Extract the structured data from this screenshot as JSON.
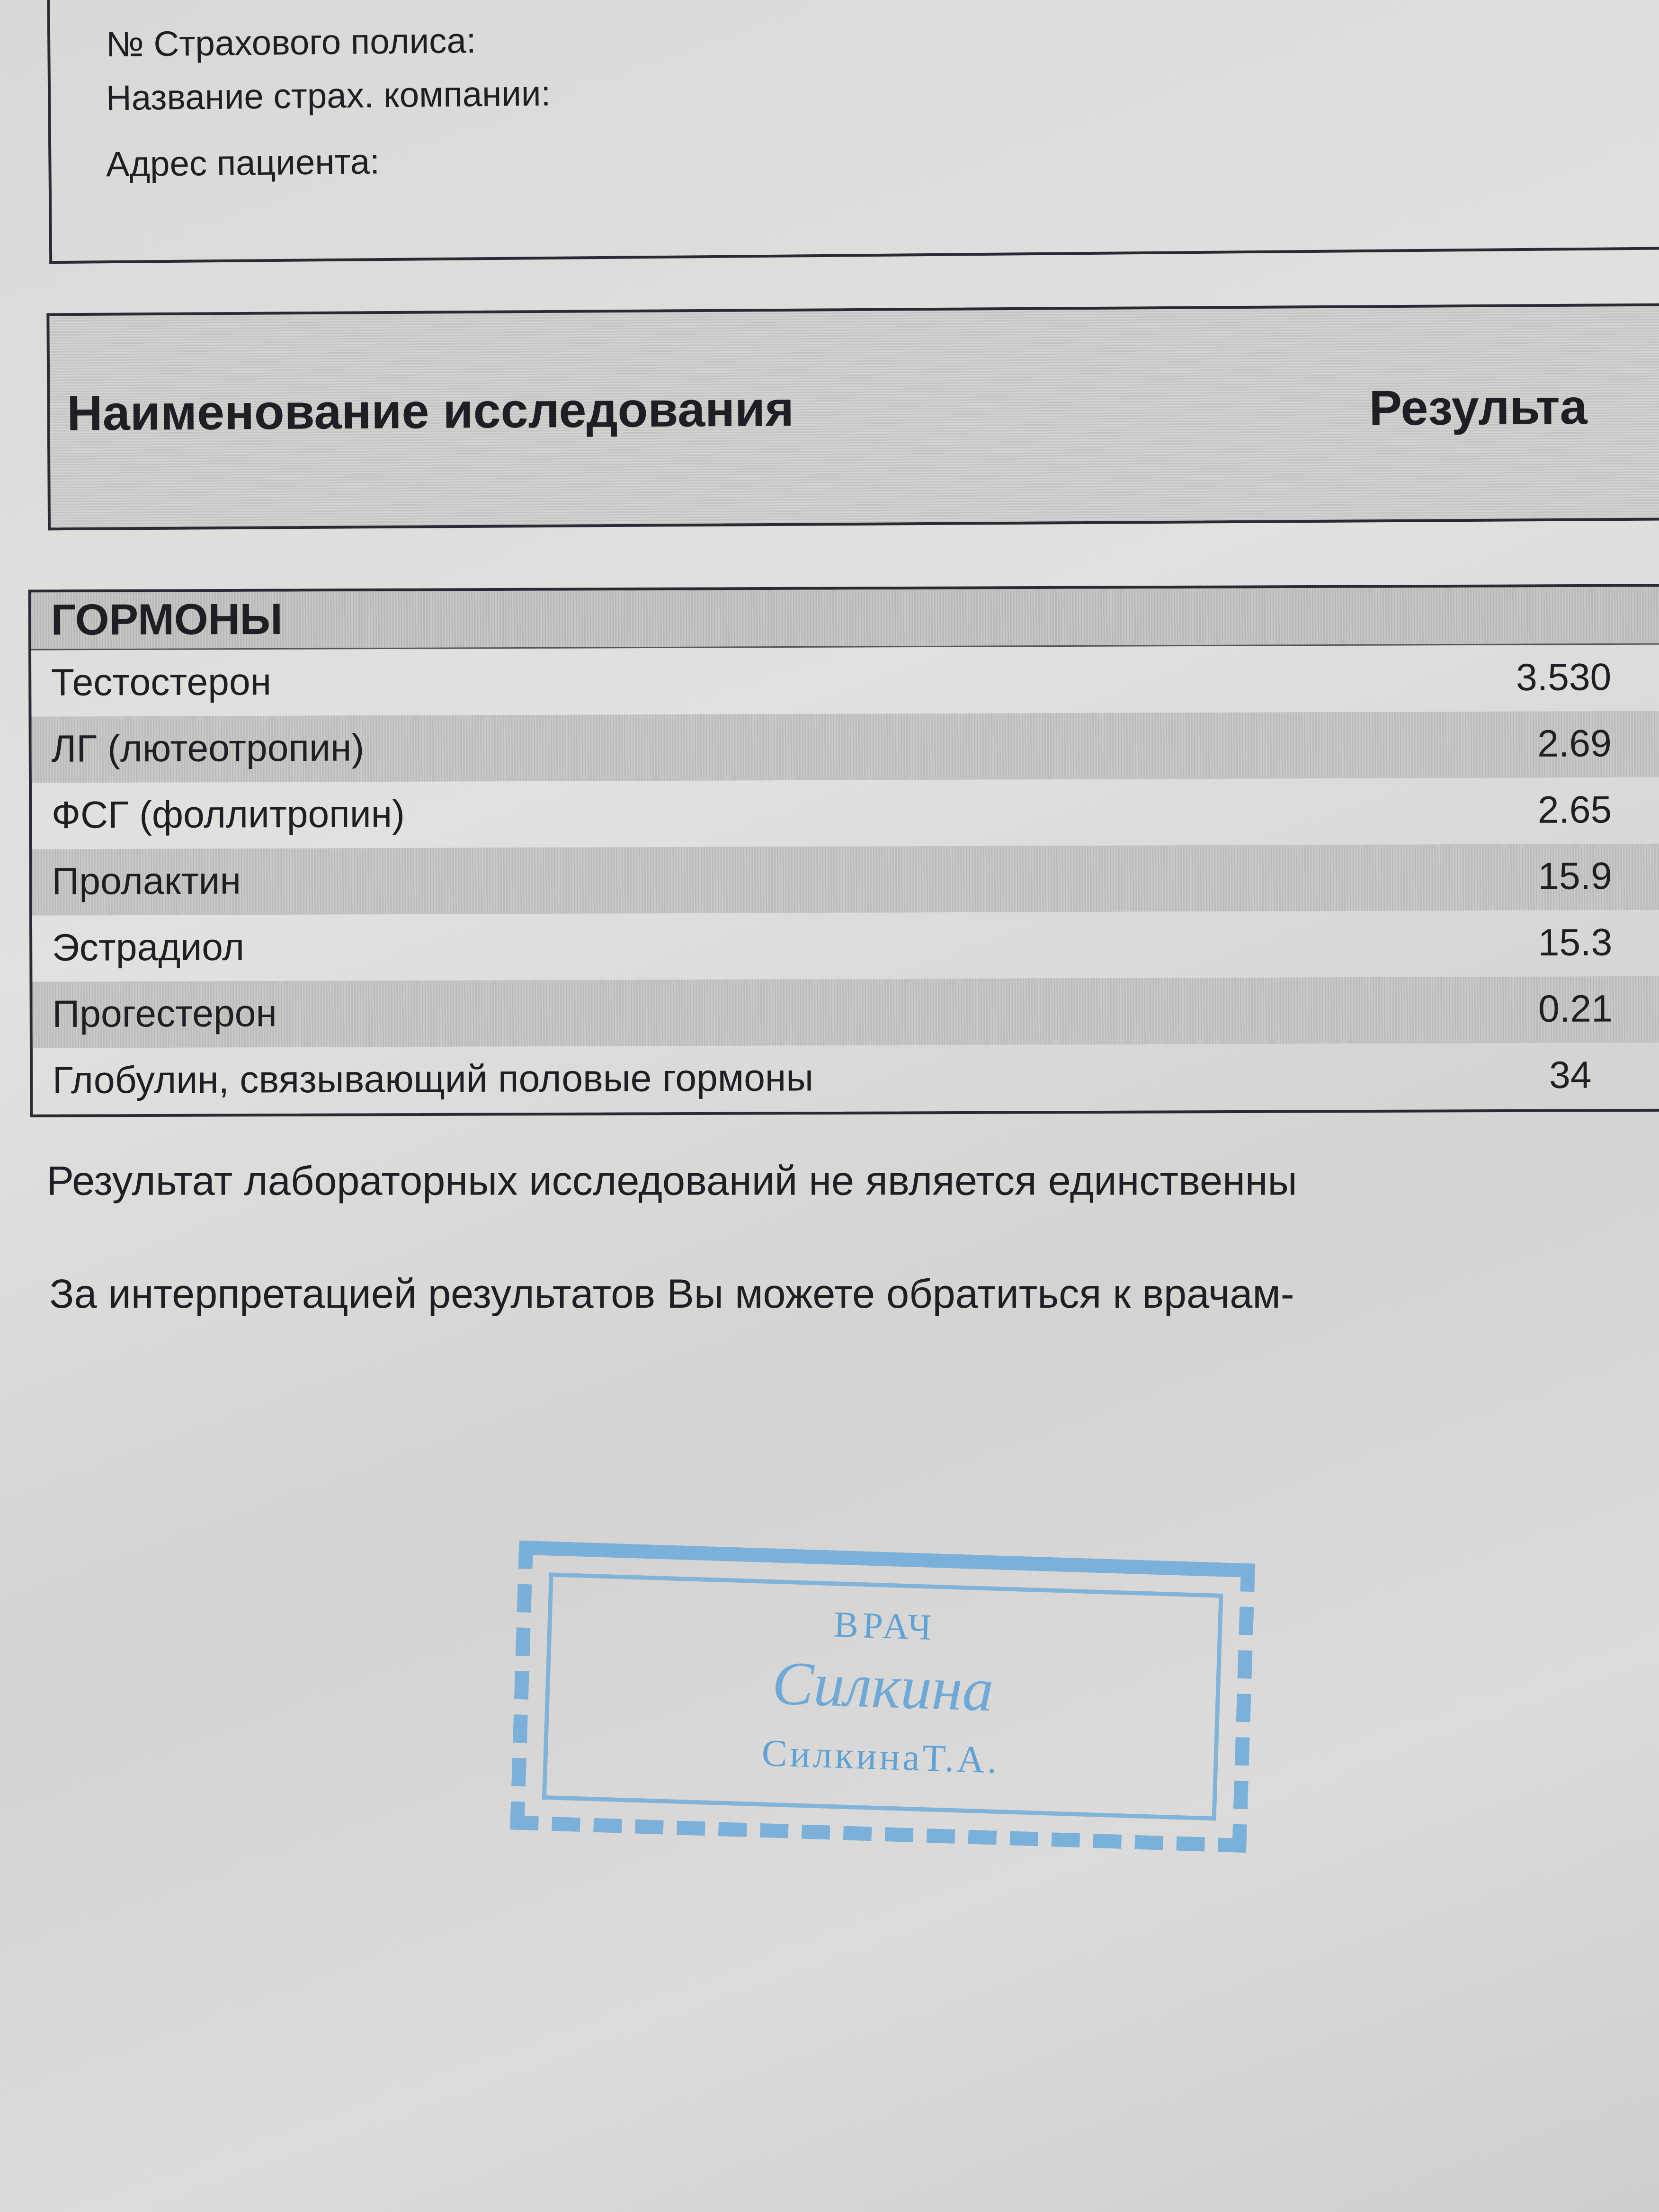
{
  "patient_info": {
    "policy_number_label": "№ Страхового полиса:",
    "insurer_name_label": "Название страх. компании:",
    "address_label": "Адрес пациента:"
  },
  "table_header": {
    "name_col": "Наименование исследования",
    "result_col": "Результа"
  },
  "section": {
    "title": "ГОРМОНЫ",
    "rows": [
      {
        "name": "Тестостерон",
        "value": "3.530"
      },
      {
        "name": "ЛГ (лютеотропин)",
        "value": "2.69"
      },
      {
        "name": "ФСГ (фоллитропин)",
        "value": "2.65"
      },
      {
        "name": "Пролактин",
        "value": "15.9"
      },
      {
        "name": "Эстрадиол",
        "value": "15.3"
      },
      {
        "name": "Прогестерон",
        "value": "0.21"
      },
      {
        "name": "Глобулин, связывающий половые гормоны",
        "value": "34"
      }
    ]
  },
  "footer": {
    "note1": "Результат лабораторных исследований не является единственны",
    "note2": "За интерпретацией результатов Вы можете обратиться к врачам-"
  },
  "stamp": {
    "title": "ВРАЧ",
    "signature": "Силкина",
    "name": "СилкинаТ.А.",
    "color": "#5fa3d6"
  }
}
